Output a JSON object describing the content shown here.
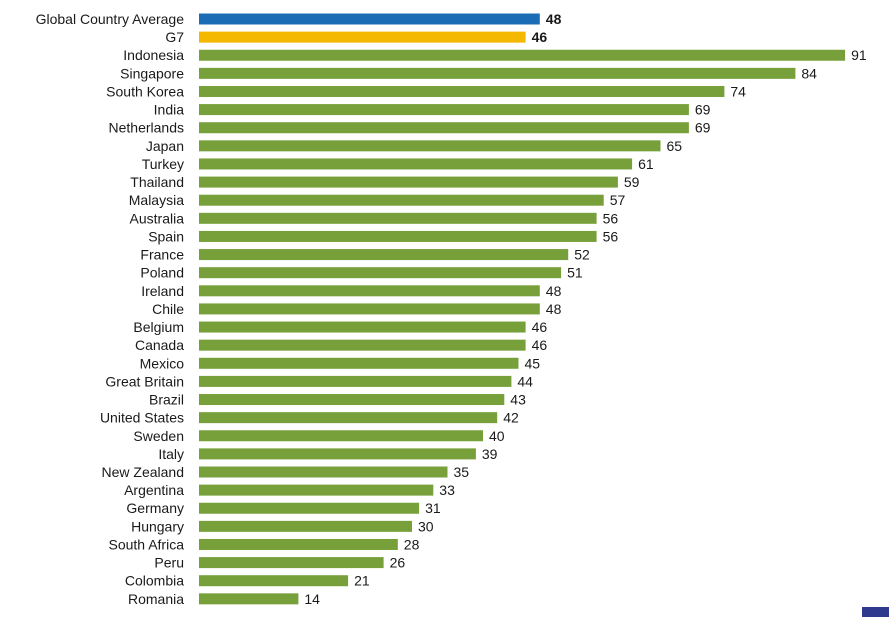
{
  "chart_data": {
    "type": "bar",
    "orientation": "horizontal",
    "title": "",
    "xlabel": "",
    "ylabel": "",
    "xlim": [
      0,
      91
    ],
    "grid": false,
    "legend": "none",
    "categories": [
      "Global Country Average",
      "G7",
      "Indonesia",
      "Singapore",
      "South Korea",
      "India",
      "Netherlands",
      "Japan",
      "Turkey",
      "Thailand",
      "Malaysia",
      "Australia",
      "Spain",
      "France",
      "Poland",
      "Ireland",
      "Chile",
      "Belgium",
      "Canada",
      "Mexico",
      "Great Britain",
      "Brazil",
      "United States",
      "Sweden",
      "Italy",
      "New Zealand",
      "Argentina",
      "Germany",
      "Hungary",
      "South Africa",
      "Peru",
      "Colombia",
      "Romania"
    ],
    "values": [
      48,
      46,
      91,
      84,
      74,
      69,
      69,
      65,
      61,
      59,
      57,
      56,
      56,
      52,
      51,
      48,
      48,
      46,
      46,
      45,
      44,
      43,
      42,
      40,
      39,
      35,
      33,
      31,
      30,
      28,
      26,
      21,
      14
    ],
    "highlights": {
      "Global Country Average": "global-average",
      "G7": "g7"
    }
  },
  "colors": {
    "global-average": "#1a6db5",
    "g7": "#f5b800",
    "country": "#77a03a",
    "corner_mark": "#2f3a8f"
  }
}
